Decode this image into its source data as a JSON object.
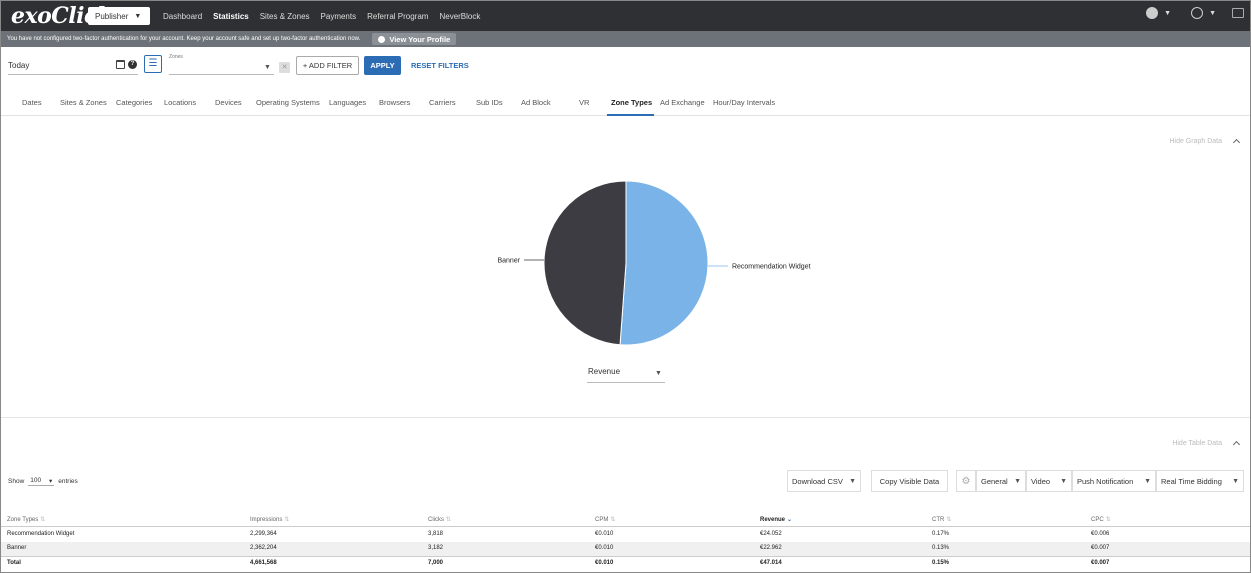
{
  "nav": {
    "logo": "exoClick",
    "account_switch": "Publisher",
    "links": [
      "Dashboard",
      "Statistics",
      "Sites & Zones",
      "Payments",
      "Referral Program",
      "NeverBlock"
    ],
    "active_link": "Statistics"
  },
  "alert": {
    "message": "You have not configured two-factor authentication for your account. Keep your account safe and set up two-factor authentication now.",
    "link": "View Your Profile"
  },
  "filters": {
    "date_value": "Today",
    "zones_label": "Zones",
    "zones_value": "",
    "add_filter": "+ ADD FILTER",
    "apply": "APPLY",
    "reset": "RESET FILTERS"
  },
  "tabs": [
    "Dates",
    "Sites & Zones",
    "Categories",
    "Locations",
    "Devices",
    "Operating Systems",
    "Languages",
    "Browsers",
    "Carriers",
    "Sub IDs",
    "Ad Block",
    "VR",
    "Zone Types",
    "Ad Exchange",
    "Hour/Day Intervals"
  ],
  "active_tab": "Zone Types",
  "graph": {
    "hide_label": "Hide Graph Data",
    "metric": "Revenue"
  },
  "chart_data": {
    "type": "pie",
    "title": "",
    "slices": [
      {
        "label": "Recommendation Widget",
        "value": 24.052,
        "color": "#7ab3e8"
      },
      {
        "label": "Banner",
        "value": 22.962,
        "color": "#3c3c42"
      }
    ]
  },
  "table_controls": {
    "hide_label": "Hide Table Data",
    "show_prefix": "Show",
    "show_value": "100",
    "show_suffix": "entries",
    "download": "Download CSV",
    "copy": "Copy Visible Data",
    "groups": [
      "General",
      "Video",
      "Push Notification",
      "Real Time Bidding"
    ]
  },
  "table": {
    "columns": [
      "Zone Types",
      "Impressions",
      "Clicks",
      "CPM",
      "Revenue",
      "CTR",
      "CPC"
    ],
    "sorted_column": "Revenue",
    "rows": [
      [
        "Recommendation Widget",
        "2,299,364",
        "3,818",
        "€0.010",
        "€24.052",
        "0.17%",
        "€0.006"
      ],
      [
        "Banner",
        "2,362,204",
        "3,182",
        "€0.010",
        "€22.962",
        "0.13%",
        "€0.007"
      ]
    ],
    "total": [
      "Total",
      "4,661,568",
      "7,000",
      "€0.010",
      "€47.014",
      "0.15%",
      "€0.007"
    ]
  }
}
